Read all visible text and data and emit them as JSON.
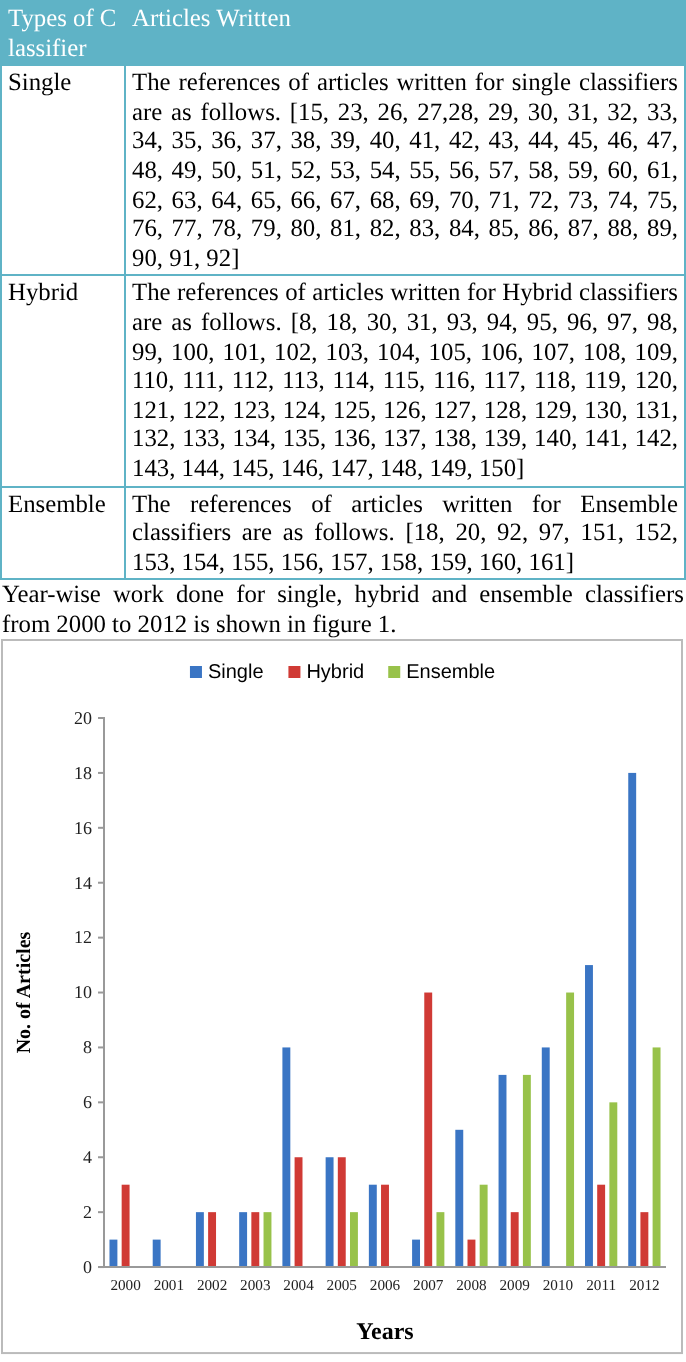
{
  "chart_data": [
    {
      "type": "other",
      "annotations": [
        "Types of Classifier",
        "Articles Written",
        "Single",
        "The references of articles written for single classifiers are as follows. [15, 23, 26, 27,28, 29, 30, 31, 32, 33, 34, 35, 36, 37, 38, 39, 40, 41, 42, 43, 44, 45, 46, 47, 48, 49, 50, 51, 52, 53, 54, 55, 56, 57, 58, 59, 60, 61, 62, 63, 64, 65, 66, 67, 68, 69, 70, 71, 72, 73, 74, 75, 76, 77, 78, 79, 80, 81, 82, 83, 84, 85, 86, 87, 88, 89, 90, 91, 92]",
        "Hybrid",
        "The references of articles written for Hybrid classifiers are as follows. [8, 18, 30, 31, 93, 94, 95, 96, 97, 98, 99, 100, 101, 102, 103, 104, 105, 106, 107, 108, 109, 110, 111, 112, 113, 114, 115, 116, 117, 118, 119, 120, 121, 122, 123, 124, 125, 126, 127, 128, 129, 130, 131, 132, 133, 134, 135, 136, 137, 138, 139, 140, 141, 142, 143, 144, 145, 146, 147, 148, 149, 150]",
        "Ensemble",
        "The references of articles written for Ensemble classifiers are as follows. [18, 20, 92, 97, 151, 152, 153, 154, 155, 156, 157, 158, 159, 160, 161]",
        "Year-wise work done for single, hybrid and ensemble classifiers from 2000 to 2012 is shown in figure 1."
      ]
    },
    {
      "type": "bar",
      "xlabel": "Years",
      "ylabel": "No. of Articles",
      "categories": [
        "2000",
        "2001",
        "2002",
        "2003",
        "2004",
        "2005",
        "2006",
        "2007",
        "2008",
        "2009",
        "2010",
        "2011",
        "2012"
      ],
      "series": [
        {
          "name": "Single",
          "color": "#3a75c4",
          "values": [
            1,
            1,
            2,
            2,
            8,
            4,
            3,
            1,
            5,
            7,
            8,
            11,
            18
          ]
        },
        {
          "name": "Hybrid",
          "color": "#d03a35",
          "values": [
            3,
            0,
            2,
            2,
            4,
            4,
            3,
            10,
            1,
            2,
            0,
            3,
            2
          ]
        },
        {
          "name": "Ensemble",
          "color": "#98c24a",
          "values": [
            0,
            0,
            0,
            2,
            0,
            2,
            0,
            2,
            3,
            7,
            10,
            6,
            8
          ]
        }
      ],
      "ylim": [
        0,
        20
      ],
      "yticks": [
        0,
        2,
        4,
        6,
        8,
        10,
        12,
        14,
        16,
        18,
        20
      ],
      "grid": false,
      "legend": "top"
    }
  ]
}
